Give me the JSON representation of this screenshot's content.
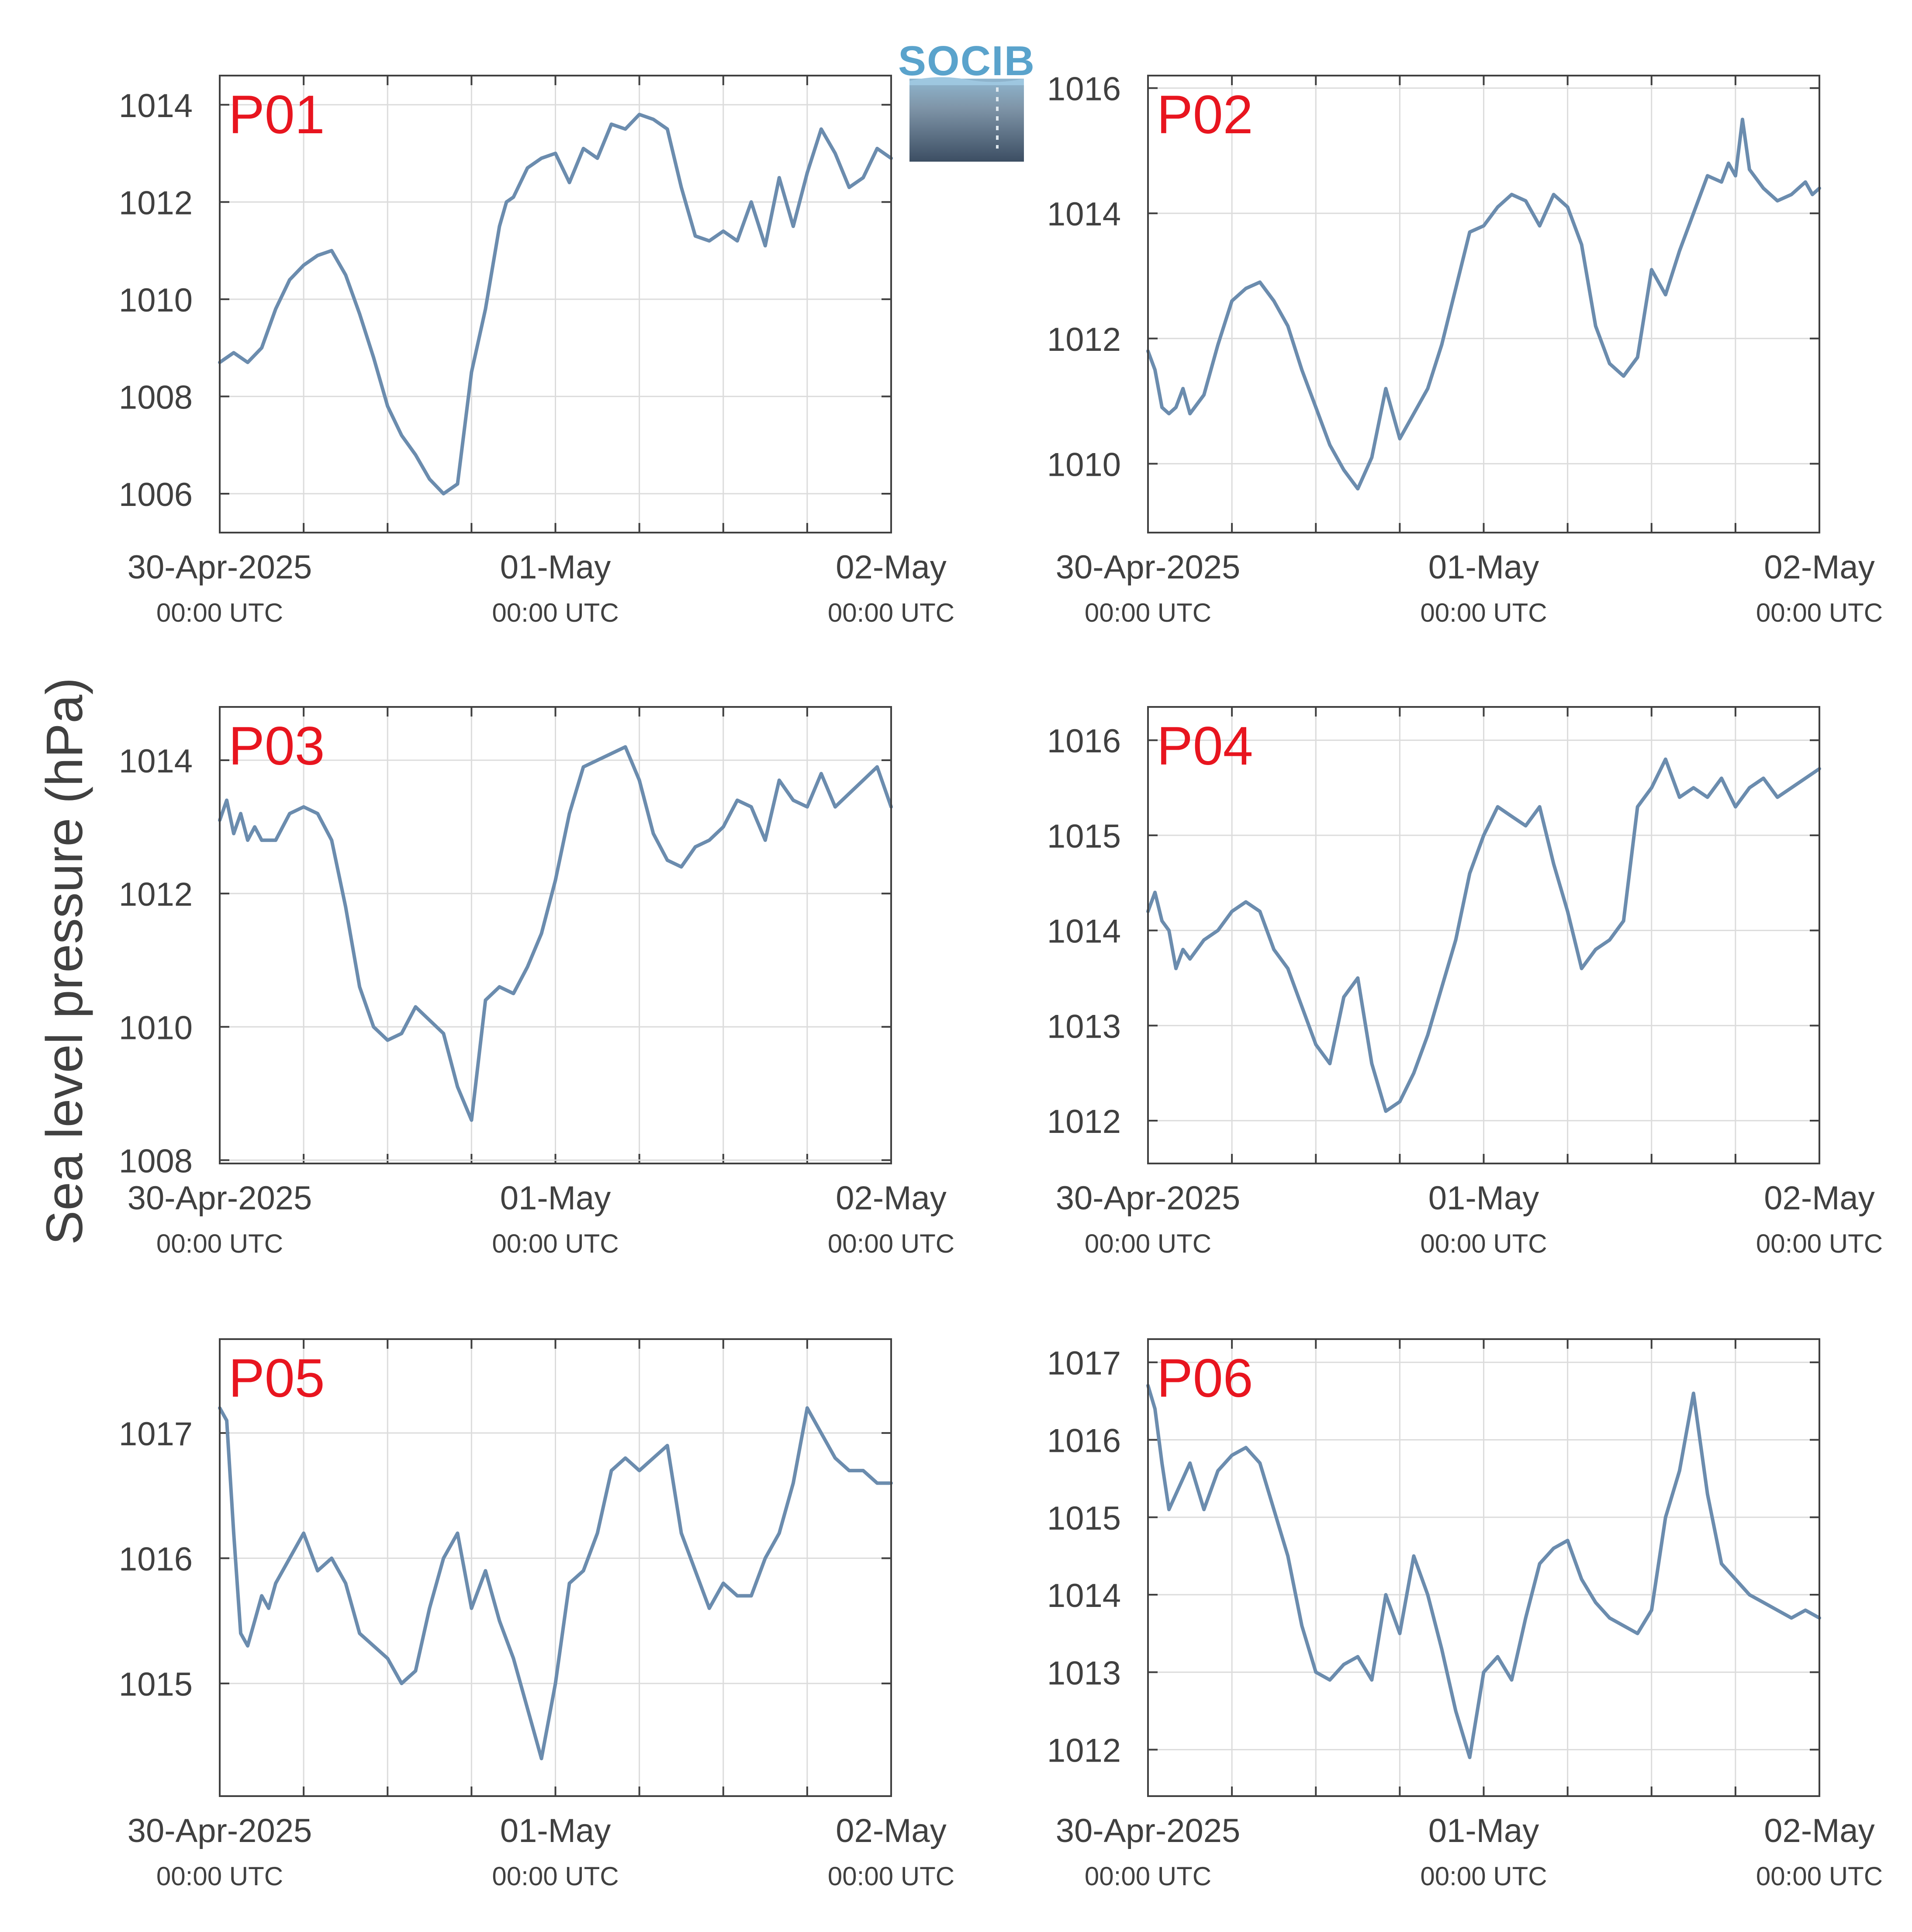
{
  "colors": {
    "line": "#6b8cae",
    "label": "#e8151f",
    "axis": "#404040",
    "grid": "#dcdcdc"
  },
  "ylabel": "Sea level pressure (hPa)",
  "logo": {
    "text": "SOCIB"
  },
  "x_ticks": [
    {
      "x": 0,
      "date": "30-Apr-2025",
      "time": "00:00 UTC"
    },
    {
      "x": 24,
      "date": "01-May",
      "time": "00:00 UTC"
    },
    {
      "x": 48,
      "date": "02-May",
      "time": "00:00 UTC"
    }
  ],
  "chart_data": [
    {
      "type": "line",
      "title": "P01",
      "xlim": [
        0,
        48
      ],
      "ylim": [
        1005.2,
        1014.6
      ],
      "yticks": [
        1006,
        1008,
        1010,
        1012,
        1014
      ],
      "series": [
        {
          "x": [
            0,
            1,
            2,
            3,
            4,
            5,
            6,
            7,
            8,
            9,
            10,
            11,
            12,
            13,
            14,
            15,
            16,
            17,
            18,
            19,
            20,
            20.5,
            21,
            22,
            23,
            24,
            25,
            26,
            27,
            28,
            29,
            30,
            31,
            32,
            33,
            34,
            35,
            36,
            37,
            38,
            39,
            40,
            41,
            42,
            43,
            44,
            45,
            46,
            47,
            48
          ],
          "y": [
            1008.7,
            1008.9,
            1008.7,
            1009.0,
            1009.8,
            1010.4,
            1010.7,
            1010.9,
            1011.0,
            1010.5,
            1009.7,
            1008.8,
            1007.8,
            1007.2,
            1006.8,
            1006.3,
            1006.0,
            1006.2,
            1008.5,
            1009.8,
            1011.5,
            1012.0,
            1012.1,
            1012.7,
            1012.9,
            1013.0,
            1012.4,
            1013.1,
            1012.9,
            1013.6,
            1013.5,
            1013.8,
            1013.7,
            1013.5,
            1012.3,
            1011.3,
            1011.2,
            1011.4,
            1011.2,
            1012.0,
            1011.1,
            1012.5,
            1011.5,
            1012.6,
            1013.5,
            1013.0,
            1012.3,
            1012.5,
            1013.1,
            1012.9
          ]
        }
      ]
    },
    {
      "type": "line",
      "title": "P02",
      "xlim": [
        0,
        48
      ],
      "ylim": [
        1008.9,
        1016.2
      ],
      "yticks": [
        1010,
        1012,
        1014,
        1016
      ],
      "series": [
        {
          "x": [
            0,
            0.5,
            1,
            1.5,
            2,
            2.5,
            3,
            4,
            5,
            6,
            7,
            8,
            9,
            10,
            11,
            12,
            13,
            14,
            15,
            16,
            17,
            18,
            19,
            20,
            21,
            22,
            23,
            24,
            25,
            26,
            27,
            28,
            29,
            30,
            31,
            32,
            33,
            34,
            35,
            36,
            37,
            38,
            39,
            40,
            41,
            41.5,
            42,
            42.5,
            43,
            44,
            45,
            46,
            47,
            47.5,
            48
          ],
          "y": [
            1011.8,
            1011.5,
            1010.9,
            1010.8,
            1010.9,
            1011.2,
            1010.8,
            1011.1,
            1011.9,
            1012.6,
            1012.8,
            1012.9,
            1012.6,
            1012.2,
            1011.5,
            1010.9,
            1010.3,
            1009.9,
            1009.6,
            1010.1,
            1011.2,
            1010.4,
            1010.8,
            1011.2,
            1011.9,
            1012.8,
            1013.7,
            1013.8,
            1014.1,
            1014.3,
            1014.2,
            1013.8,
            1014.3,
            1014.1,
            1013.5,
            1012.2,
            1011.6,
            1011.4,
            1011.7,
            1013.1,
            1012.7,
            1013.4,
            1014.0,
            1014.6,
            1014.5,
            1014.8,
            1014.6,
            1015.5,
            1014.7,
            1014.4,
            1014.2,
            1014.3,
            1014.5,
            1014.3,
            1014.4
          ]
        }
      ]
    },
    {
      "type": "line",
      "title": "P03",
      "xlim": [
        0,
        48
      ],
      "ylim": [
        1007.95,
        1014.8
      ],
      "yticks": [
        1008,
        1010,
        1012,
        1014
      ],
      "series": [
        {
          "x": [
            0,
            0.5,
            1,
            1.5,
            2,
            2.5,
            3,
            4,
            5,
            6,
            7,
            8,
            9,
            10,
            11,
            12,
            13,
            14,
            15,
            16,
            17,
            18,
            19,
            20,
            21,
            22,
            23,
            24,
            25,
            26,
            27,
            28,
            29,
            30,
            31,
            32,
            33,
            34,
            35,
            36,
            37,
            38,
            39,
            40,
            41,
            42,
            43,
            44,
            45,
            46,
            47,
            48
          ],
          "y": [
            1013.1,
            1013.4,
            1012.9,
            1013.2,
            1012.8,
            1013.0,
            1012.8,
            1012.8,
            1013.2,
            1013.3,
            1013.2,
            1012.8,
            1011.8,
            1010.6,
            1010.0,
            1009.8,
            1009.9,
            1010.3,
            1010.1,
            1009.9,
            1009.1,
            1008.6,
            1010.4,
            1010.6,
            1010.5,
            1010.9,
            1011.4,
            1012.2,
            1013.2,
            1013.9,
            1014.0,
            1014.1,
            1014.2,
            1013.7,
            1012.9,
            1012.5,
            1012.4,
            1012.7,
            1012.8,
            1013.0,
            1013.4,
            1013.3,
            1012.8,
            1013.7,
            1013.4,
            1013.3,
            1013.8,
            1013.3,
            1013.5,
            1013.7,
            1013.9,
            1013.3
          ]
        }
      ]
    },
    {
      "type": "line",
      "title": "P04",
      "xlim": [
        0,
        48
      ],
      "ylim": [
        1011.55,
        1016.35
      ],
      "yticks": [
        1012,
        1013,
        1014,
        1015,
        1016
      ],
      "series": [
        {
          "x": [
            0,
            0.5,
            1,
            1.5,
            2,
            2.5,
            3,
            4,
            5,
            6,
            7,
            8,
            9,
            10,
            11,
            12,
            13,
            14,
            15,
            16,
            17,
            18,
            19,
            20,
            21,
            22,
            23,
            24,
            25,
            26,
            27,
            28,
            29,
            30,
            31,
            32,
            33,
            34,
            35,
            36,
            37,
            38,
            39,
            40,
            41,
            42,
            43,
            44,
            45,
            46,
            47,
            48
          ],
          "y": [
            1014.2,
            1014.4,
            1014.1,
            1014.0,
            1013.6,
            1013.8,
            1013.7,
            1013.9,
            1014.0,
            1014.2,
            1014.3,
            1014.2,
            1013.8,
            1013.6,
            1013.2,
            1012.8,
            1012.6,
            1013.3,
            1013.5,
            1012.6,
            1012.1,
            1012.2,
            1012.5,
            1012.9,
            1013.4,
            1013.9,
            1014.6,
            1015.0,
            1015.3,
            1015.2,
            1015.1,
            1015.3,
            1014.7,
            1014.2,
            1013.6,
            1013.8,
            1013.9,
            1014.1,
            1015.3,
            1015.5,
            1015.8,
            1015.4,
            1015.5,
            1015.4,
            1015.6,
            1015.3,
            1015.5,
            1015.6,
            1015.4,
            1015.5,
            1015.6,
            1015.7
          ]
        }
      ]
    },
    {
      "type": "line",
      "title": "P05",
      "xlim": [
        0,
        48
      ],
      "ylim": [
        1014.1,
        1017.75
      ],
      "yticks": [
        1015,
        1016,
        1017
      ],
      "series": [
        {
          "x": [
            0,
            0.5,
            1,
            1.5,
            2,
            2.5,
            3,
            3.5,
            4,
            5,
            6,
            7,
            8,
            9,
            10,
            11,
            12,
            13,
            14,
            15,
            16,
            17,
            18,
            19,
            20,
            21,
            22,
            23,
            24,
            25,
            26,
            27,
            28,
            29,
            30,
            31,
            32,
            33,
            34,
            35,
            36,
            37,
            38,
            39,
            40,
            41,
            42,
            43,
            44,
            45,
            46,
            47,
            48
          ],
          "y": [
            1017.2,
            1017.1,
            1016.2,
            1015.4,
            1015.3,
            1015.5,
            1015.7,
            1015.6,
            1015.8,
            1016.0,
            1016.2,
            1015.9,
            1016.0,
            1015.8,
            1015.4,
            1015.3,
            1015.2,
            1015.0,
            1015.1,
            1015.6,
            1016.0,
            1016.2,
            1015.6,
            1015.9,
            1015.5,
            1015.2,
            1014.8,
            1014.4,
            1015.0,
            1015.8,
            1015.9,
            1016.2,
            1016.7,
            1016.8,
            1016.7,
            1016.8,
            1016.9,
            1016.2,
            1015.9,
            1015.6,
            1015.8,
            1015.7,
            1015.7,
            1016.0,
            1016.2,
            1016.6,
            1017.2,
            1017.0,
            1016.8,
            1016.7,
            1016.7,
            1016.6,
            1016.6
          ]
        }
      ]
    },
    {
      "type": "line",
      "title": "P06",
      "xlim": [
        0,
        48
      ],
      "ylim": [
        1011.4,
        1017.3
      ],
      "yticks": [
        1012,
        1013,
        1014,
        1015,
        1016,
        1017
      ],
      "series": [
        {
          "x": [
            0,
            0.5,
            1,
            1.5,
            2,
            2.5,
            3,
            4,
            5,
            6,
            7,
            8,
            9,
            10,
            11,
            12,
            13,
            14,
            15,
            16,
            17,
            18,
            19,
            20,
            21,
            22,
            23,
            24,
            25,
            26,
            27,
            28,
            29,
            30,
            31,
            32,
            33,
            34,
            35,
            36,
            37,
            38,
            39,
            40,
            41,
            42,
            43,
            44,
            45,
            46,
            47,
            48
          ],
          "y": [
            1016.7,
            1016.4,
            1015.7,
            1015.1,
            1015.3,
            1015.5,
            1015.7,
            1015.1,
            1015.6,
            1015.8,
            1015.9,
            1015.7,
            1015.1,
            1014.5,
            1013.6,
            1013.0,
            1012.9,
            1013.1,
            1013.2,
            1012.9,
            1014.0,
            1013.5,
            1014.5,
            1014.0,
            1013.3,
            1012.5,
            1011.9,
            1013.0,
            1013.2,
            1012.9,
            1013.7,
            1014.4,
            1014.6,
            1014.7,
            1014.2,
            1013.9,
            1013.7,
            1013.6,
            1013.5,
            1013.8,
            1015.0,
            1015.6,
            1016.6,
            1015.3,
            1014.4,
            1014.2,
            1014.0,
            1013.9,
            1013.8,
            1013.7,
            1013.8,
            1013.7
          ]
        }
      ]
    }
  ]
}
